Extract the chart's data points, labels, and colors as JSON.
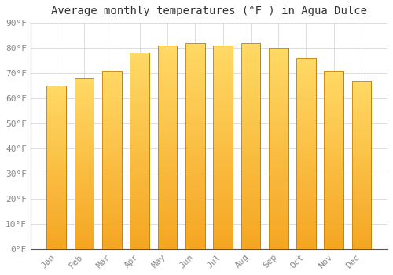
{
  "title": "Average monthly temperatures (°F ) in Agua Dulce",
  "months": [
    "Jan",
    "Feb",
    "Mar",
    "Apr",
    "May",
    "Jun",
    "Jul",
    "Aug",
    "Sep",
    "Oct",
    "Nov",
    "Dec"
  ],
  "values": [
    65,
    68,
    71,
    78,
    81,
    82,
    81,
    82,
    80,
    76,
    71,
    67
  ],
  "bar_color_bottom": "#F5A623",
  "bar_color_top": "#FFD966",
  "bar_edge_color": "#C8820A",
  "ylim": [
    0,
    90
  ],
  "yticks": [
    0,
    10,
    20,
    30,
    40,
    50,
    60,
    70,
    80,
    90
  ],
  "ytick_labels": [
    "0°F",
    "10°F",
    "20°F",
    "30°F",
    "40°F",
    "50°F",
    "60°F",
    "70°F",
    "80°F",
    "90°F"
  ],
  "background_color": "#FFFFFF",
  "grid_color": "#DDDDDD",
  "title_fontsize": 10,
  "tick_fontsize": 8,
  "font_family": "monospace"
}
